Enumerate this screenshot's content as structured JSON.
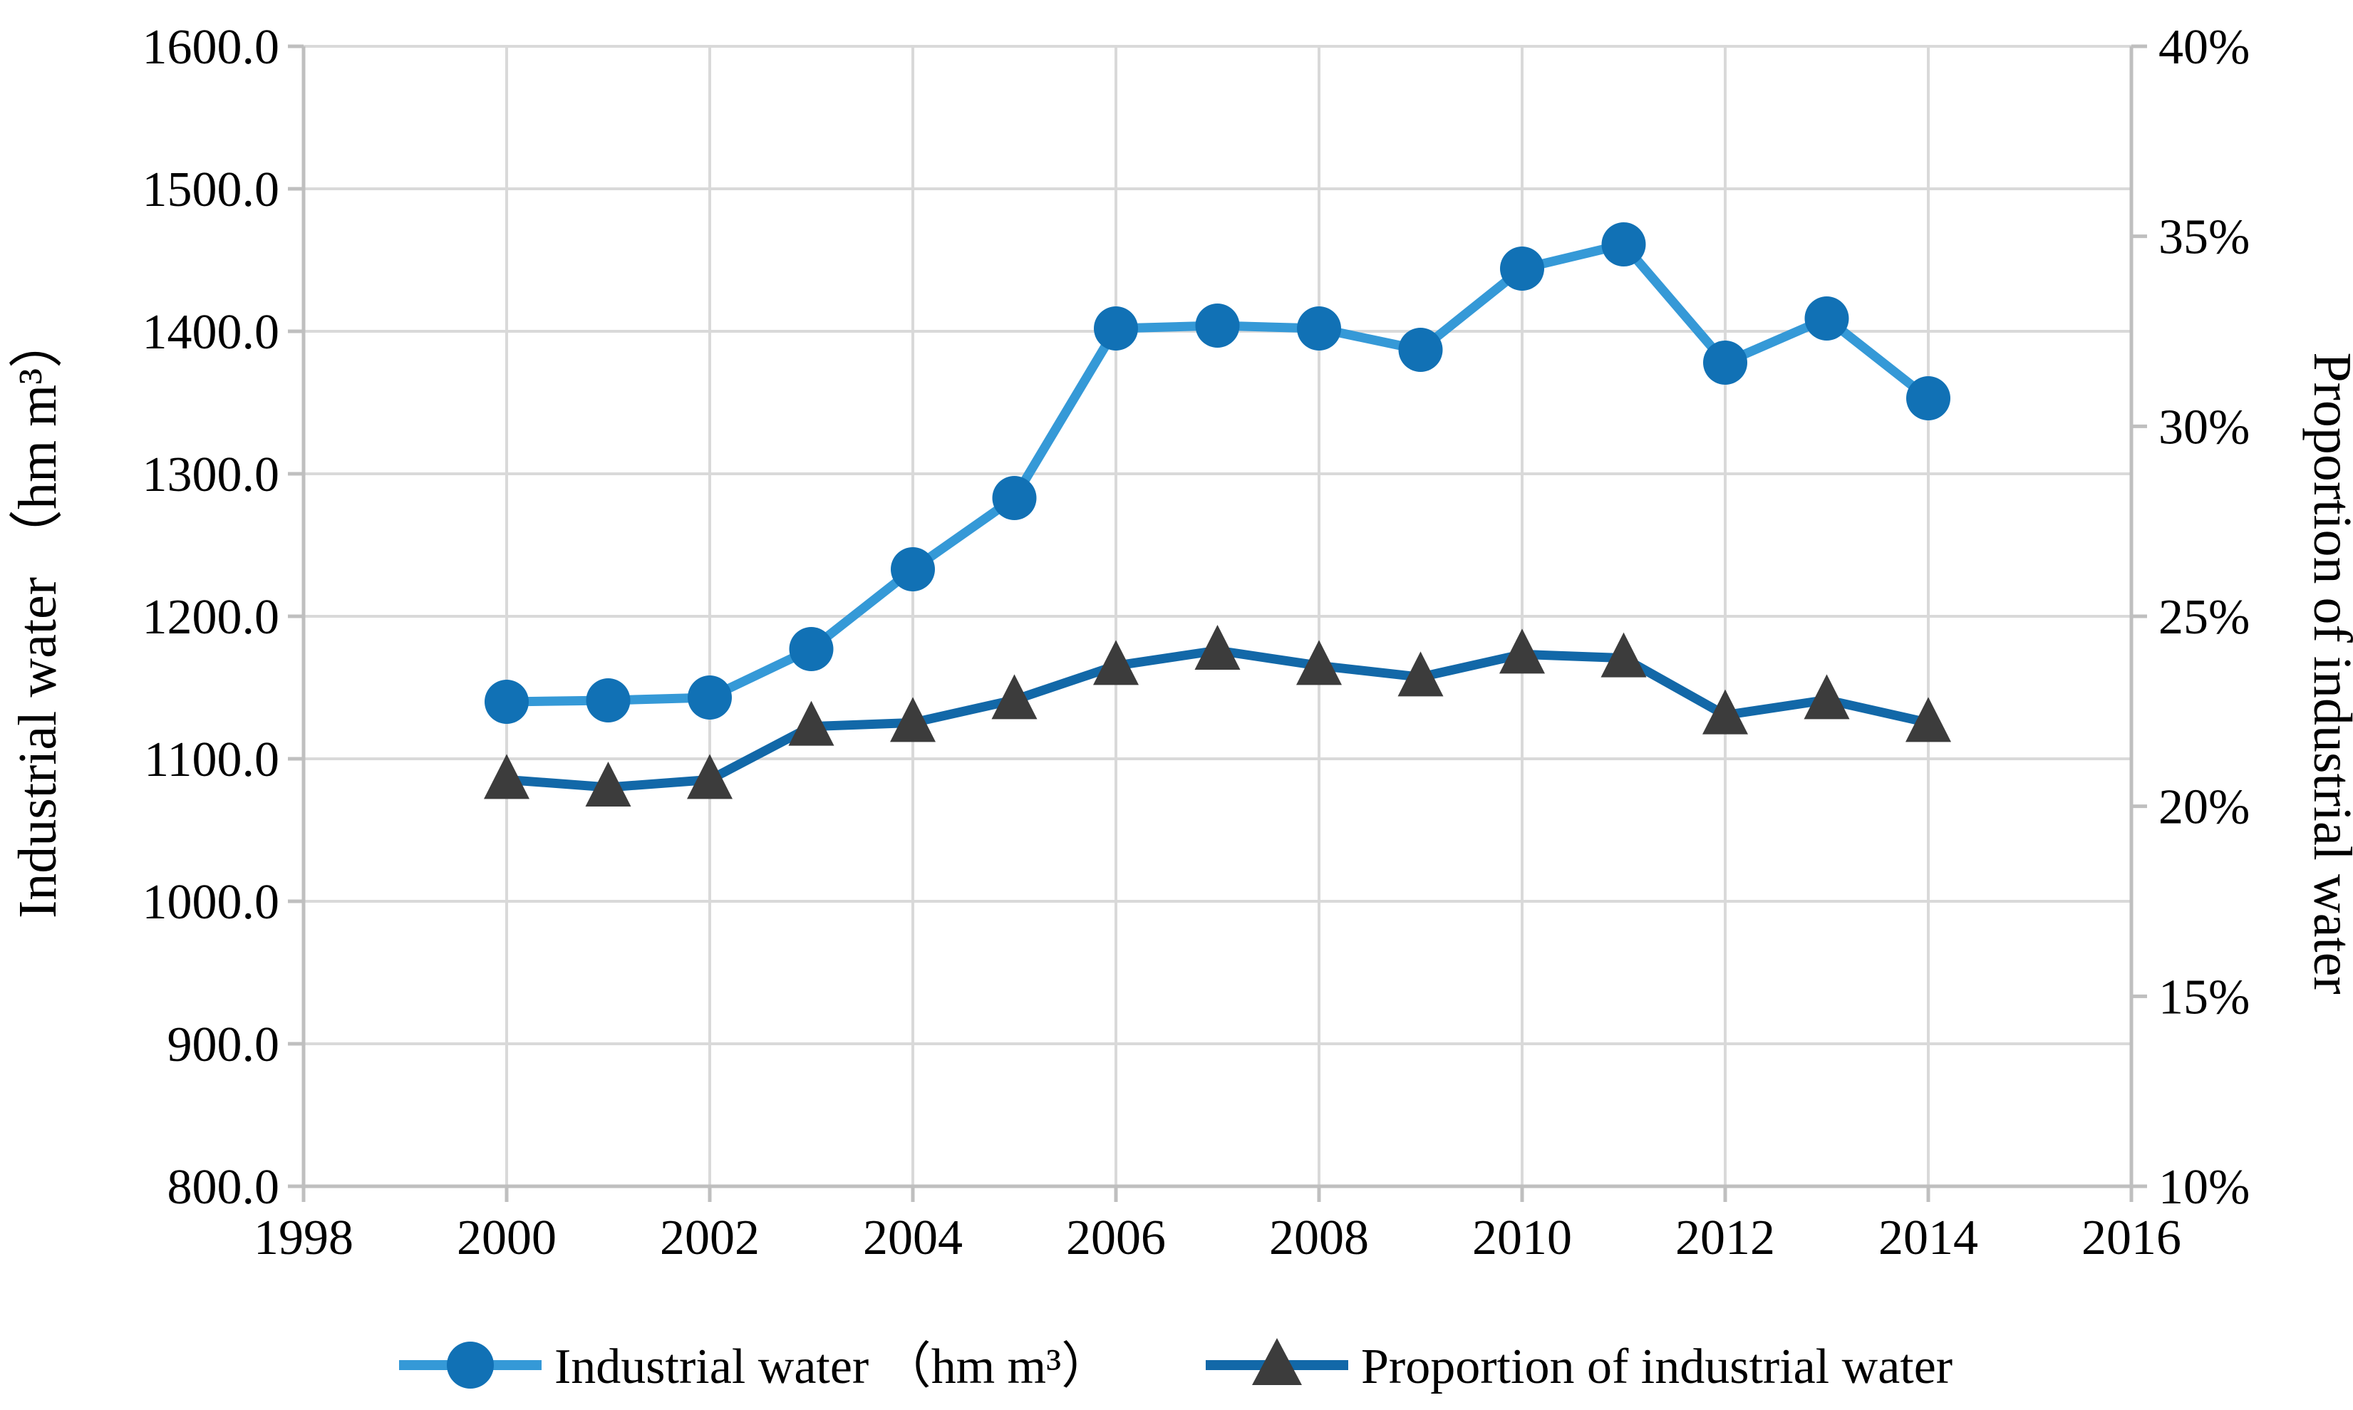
{
  "figure": {
    "background_color": "#ffffff",
    "text_color": "#000000",
    "gridline_color": "#d9d9d9",
    "axis_line_color": "#bfbfbf"
  },
  "chart_data": {
    "type": "line",
    "title": "",
    "x_years": [
      2000,
      2001,
      2002,
      2003,
      2004,
      2005,
      2006,
      2007,
      2008,
      2009,
      2010,
      2011,
      2012,
      2013,
      2014
    ],
    "series": [
      {
        "name": "Industrial water (hm m³)",
        "axis": "left",
        "marker": "circle",
        "line_color": "#3599d7",
        "marker_color": "#1171b5",
        "values": [
          1140,
          1141,
          1143,
          1177,
          1233,
          1283,
          1402,
          1404,
          1402,
          1387,
          1444,
          1461,
          1378,
          1409,
          1353
        ]
      },
      {
        "name": "Proportion of industrial water",
        "axis": "right",
        "marker": "triangle",
        "line_color": "#1268a8",
        "marker_color": "#3c3c3c",
        "values": [
          20.7,
          20.5,
          20.7,
          22.1,
          22.2,
          22.8,
          23.7,
          24.1,
          23.7,
          23.4,
          24.0,
          23.9,
          22.4,
          22.8,
          22.2
        ]
      }
    ],
    "left_axis": {
      "title": "Industrial water （hm m³）",
      "min": 800,
      "max": 1600,
      "step": 100,
      "labels": [
        "800.0",
        "900.0",
        "1000.0",
        "1100.0",
        "1200.0",
        "1300.0",
        "1400.0",
        "1500.0",
        "1600.0"
      ]
    },
    "right_axis": {
      "title": "Proportion of industrial water",
      "min": 10,
      "max": 40,
      "step": 5,
      "labels": [
        "10%",
        "15%",
        "20%",
        "25%",
        "30%",
        "35%",
        "40%"
      ]
    },
    "x_axis": {
      "min": 1998,
      "max": 2016,
      "step": 2,
      "labels": [
        "1998",
        "2000",
        "2002",
        "2004",
        "2006",
        "2008",
        "2010",
        "2012",
        "2014",
        "2016"
      ]
    },
    "grid": {
      "horizontal": true,
      "vertical": true
    },
    "legend": {
      "position": "bottom",
      "items": [
        "Industrial water （hm m³）",
        "Proportion of industrial water"
      ]
    }
  }
}
